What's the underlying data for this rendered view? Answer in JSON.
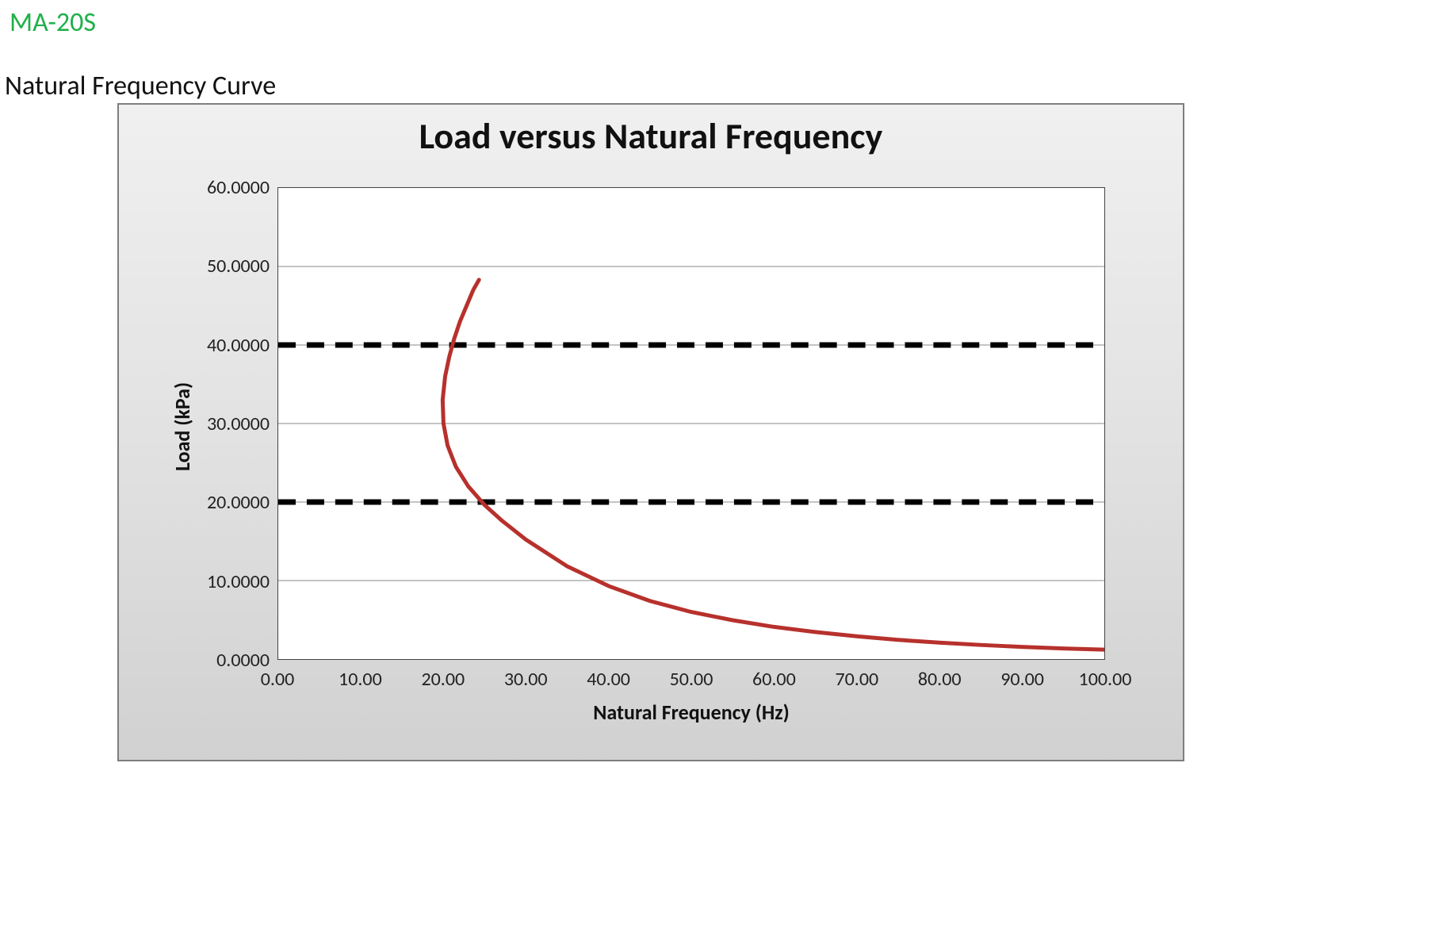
{
  "header": {
    "model": "MA-20S",
    "subtitle": "Natural Frequency Curve",
    "model_color": "#1fb04a",
    "subtitle_color": "#111111",
    "model_fontsize": 34,
    "subtitle_fontsize": 34
  },
  "chart": {
    "type": "line",
    "title": "Load versus Natural Frequency",
    "title_fontsize": 46,
    "title_fontweight": 700,
    "panel_border_color": "#7e7e7e",
    "panel_bg_gradient_top": "#f0f0f0",
    "panel_bg_gradient_bottom": "#d1d1d1",
    "plot_bg": "#ffffff",
    "plot_border_color": "#444444",
    "grid_color": "#8a8a8a",
    "grid_line_width": 1,
    "x": {
      "label": "Natural Frequency (Hz)",
      "label_fontsize": 26,
      "label_fontweight": 700,
      "min": 0.0,
      "max": 100.0,
      "tick_step": 10.0,
      "tick_decimals": 2,
      "ticks": [
        "0.00",
        "10.00",
        "20.00",
        "30.00",
        "40.00",
        "50.00",
        "60.00",
        "70.00",
        "80.00",
        "90.00",
        "100.00"
      ]
    },
    "y": {
      "label": "Load (kPa)",
      "label_fontsize": 26,
      "label_fontweight": 700,
      "min": 0.0,
      "max": 60.0,
      "tick_step": 10.0,
      "tick_decimals": 4,
      "ticks": [
        "0.0000",
        "10.0000",
        "20.0000",
        "30.0000",
        "40.0000",
        "50.0000",
        "60.0000"
      ]
    },
    "reference_lines": {
      "color": "#000000",
      "width": 7,
      "dash": "22 14",
      "y_values": [
        20.0,
        40.0
      ]
    },
    "series": {
      "color": "#b7312c",
      "width": 5,
      "points": [
        [
          100.0,
          1.2
        ],
        [
          95.0,
          1.35
        ],
        [
          90.0,
          1.55
        ],
        [
          85.0,
          1.8
        ],
        [
          80.0,
          2.1
        ],
        [
          75.0,
          2.45
        ],
        [
          70.0,
          2.9
        ],
        [
          65.0,
          3.45
        ],
        [
          60.0,
          4.1
        ],
        [
          55.0,
          4.95
        ],
        [
          50.0,
          6.0
        ],
        [
          45.0,
          7.4
        ],
        [
          40.0,
          9.3
        ],
        [
          35.0,
          11.8
        ],
        [
          30.0,
          15.2
        ],
        [
          27.0,
          17.7
        ],
        [
          25.0,
          19.6
        ],
        [
          23.0,
          22.0
        ],
        [
          21.5,
          24.5
        ],
        [
          20.5,
          27.2
        ],
        [
          20.0,
          30.0
        ],
        [
          19.9,
          33.0
        ],
        [
          20.2,
          36.0
        ],
        [
          20.7,
          38.5
        ],
        [
          21.3,
          40.8
        ],
        [
          22.0,
          43.0
        ],
        [
          22.8,
          45.0
        ],
        [
          23.6,
          47.0
        ],
        [
          24.3,
          48.3
        ]
      ]
    }
  }
}
